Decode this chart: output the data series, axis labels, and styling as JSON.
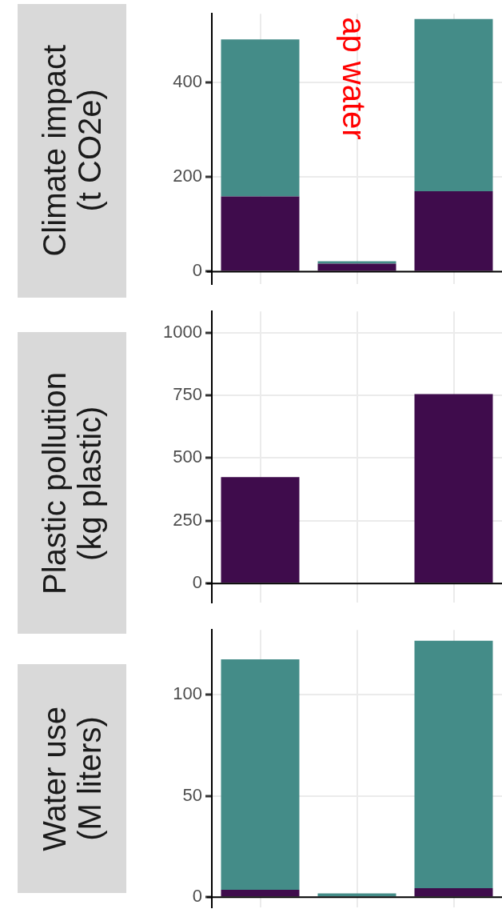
{
  "chart_data": [
    {
      "type": "bar",
      "stacked": true,
      "ylabel": "Climate impact\n(t CO2e)",
      "categories": [
        null,
        null,
        null
      ],
      "series": [
        {
          "color": "#3f0c4c",
          "values": [
            159,
            17,
            170
          ]
        },
        {
          "color": "#448c88",
          "values": [
            332,
            5,
            364
          ]
        }
      ],
      "ylim": [
        -26,
        545
      ],
      "yticks": [
        0,
        200,
        400
      ],
      "grid": true,
      "tick_labels": "y",
      "ref_lines": [
        {
          "axis": "y",
          "value": 0,
          "color": "#000000"
        }
      ],
      "annotations": [
        "ap water"
      ]
    },
    {
      "type": "bar",
      "stacked": true,
      "ylabel": "Plastic pollution\n(kg plastic)",
      "categories": [
        null,
        null,
        null
      ],
      "series": [
        {
          "color": "#3f0c4c",
          "values": [
            424,
            null,
            755
          ]
        }
      ],
      "ylim": [
        -75,
        1084
      ],
      "yticks": [
        0,
        250,
        500,
        750,
        1000
      ],
      "grid": true,
      "tick_labels": "y",
      "ref_lines": [
        {
          "axis": "y",
          "value": 0,
          "color": "#000000"
        }
      ]
    },
    {
      "type": "bar",
      "stacked": true,
      "ylabel": "Water use\n(M liters)",
      "categories": [
        null,
        null,
        null
      ],
      "series": [
        {
          "color": "#3f0c4c",
          "values": [
            3.6,
            0,
            4.4
          ]
        },
        {
          "color": "#448c88",
          "values": [
            113.9,
            1.8,
            122.2
          ]
        }
      ],
      "ylim": [
        -5,
        132
      ],
      "yticks": [
        0,
        50,
        100
      ],
      "grid": true,
      "tick_labels": "y",
      "ref_lines": [
        {
          "axis": "y",
          "value": 0,
          "color": "#000000"
        }
      ]
    }
  ]
}
